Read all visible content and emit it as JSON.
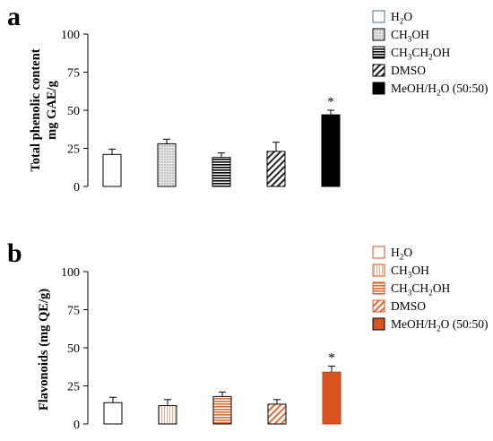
{
  "chart_data": [
    {
      "type": "bar",
      "panel_label": "a",
      "ylabel_lines": [
        "Total phenolic content",
        "mg GAE/g"
      ],
      "ylim": [
        0,
        100
      ],
      "yticks": [
        "0",
        "25",
        "50",
        "75",
        "100"
      ],
      "categories": [
        "H2O",
        "CH3OH",
        "CH3CH2OH",
        "DMSO",
        "MeOH/H2O (50:50)"
      ],
      "values": [
        21,
        28,
        19,
        23,
        47
      ],
      "errors": [
        3.5,
        3,
        3,
        6,
        3
      ],
      "significance": [
        "",
        "",
        "",
        "",
        "*"
      ],
      "legend": [
        {
          "parts": [
            [
              "H",
              ""
            ],
            [
              "2",
              "sub"
            ],
            [
              "O",
              ""
            ]
          ],
          "fill": "white"
        },
        {
          "parts": [
            [
              "CH",
              ""
            ],
            [
              "3",
              "sub"
            ],
            [
              "OH",
              ""
            ]
          ],
          "fill": "gray"
        },
        {
          "parts": [
            [
              "CH",
              ""
            ],
            [
              "3",
              "sub"
            ],
            [
              "CH",
              ""
            ],
            [
              "2",
              "sub"
            ],
            [
              "OH",
              ""
            ]
          ],
          "fill": "hlines"
        },
        {
          "parts": [
            [
              "DMSO",
              ""
            ]
          ],
          "fill": "diag"
        },
        {
          "parts": [
            [
              "MeOH/H",
              ""
            ],
            [
              "2",
              "sub"
            ],
            [
              "O (50:50)",
              ""
            ]
          ],
          "fill": "black"
        }
      ],
      "legend_placement": "right"
    },
    {
      "type": "bar",
      "panel_label": "b",
      "ylabel_lines": [
        "Flavonoids (mg QE/g)"
      ],
      "ylim": [
        0,
        100
      ],
      "yticks": [
        "0",
        "25",
        "50",
        "75",
        "100"
      ],
      "categories": [
        "H2O",
        "CH3OH",
        "CH3CH2OH",
        "DMSO",
        "MeOH/H2O (50:50)"
      ],
      "values": [
        14,
        12,
        18,
        13,
        34
      ],
      "errors": [
        3.5,
        4,
        3,
        3,
        4
      ],
      "significance": [
        "",
        "",
        "",
        "",
        "*"
      ],
      "legend": [
        {
          "parts": [
            [
              "H",
              ""
            ],
            [
              "2",
              "sub"
            ],
            [
              "O",
              ""
            ]
          ],
          "fill": "white"
        },
        {
          "parts": [
            [
              "CH",
              ""
            ],
            [
              "3",
              "sub"
            ],
            [
              "OH",
              ""
            ]
          ],
          "fill": "vlines"
        },
        {
          "parts": [
            [
              "CH",
              ""
            ],
            [
              "3",
              "sub"
            ],
            [
              "CH",
              ""
            ],
            [
              "2",
              "sub"
            ],
            [
              "OH",
              ""
            ]
          ],
          "fill": "hlines-orange"
        },
        {
          "parts": [
            [
              "DMSO",
              ""
            ]
          ],
          "fill": "diag-orange"
        },
        {
          "parts": [
            [
              "MeOH/H",
              ""
            ],
            [
              "2",
              "sub"
            ],
            [
              "O (50:50)",
              ""
            ]
          ],
          "fill": "orange"
        }
      ],
      "legend_placement": "right"
    }
  ],
  "colors": {
    "axis": "#000000",
    "orange": "#d9531e",
    "orange_light": "#f2b49a",
    "gray": "#b5b5b5",
    "black": "#000000"
  }
}
